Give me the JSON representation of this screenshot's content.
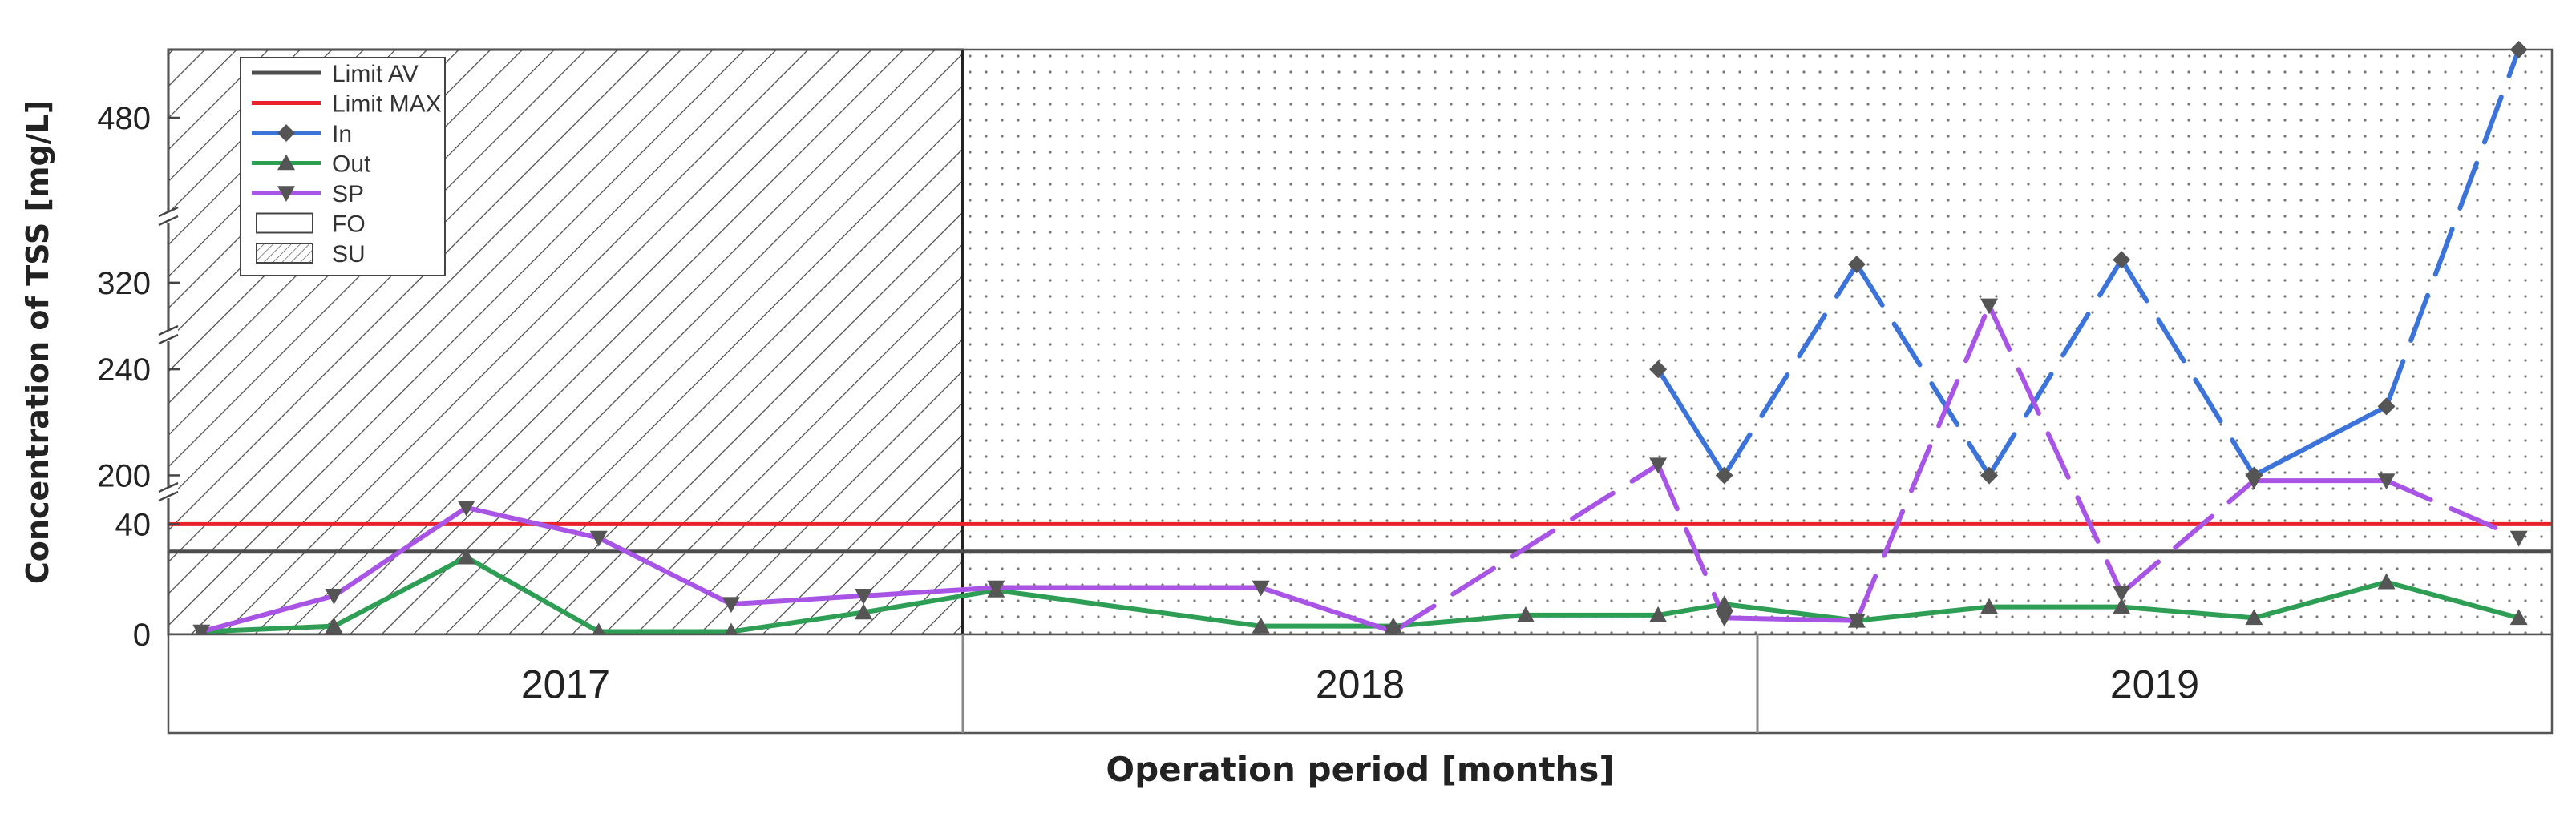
{
  "chart_data": {
    "type": "line",
    "title": "",
    "xlabel": "Operation period [months]",
    "ylabel": "Concentration of TSS [mg/L]",
    "y_axis": {
      "broken": true,
      "segments": [
        {
          "range": [
            0,
            50
          ],
          "ticks": [
            0,
            40
          ]
        },
        {
          "range": [
            195,
            250
          ],
          "ticks": [
            200,
            240
          ]
        },
        {
          "range": [
            300,
            335
          ],
          "ticks": [
            320
          ]
        },
        {
          "range": [
            470,
            490
          ],
          "ticks": [
            480
          ]
        }
      ],
      "tick_labels": [
        "0",
        "40",
        "200",
        "240",
        "320",
        "480"
      ]
    },
    "years": [
      "2017",
      "2018",
      "2019"
    ],
    "months_per_year": 12,
    "periods": [
      {
        "name": "SU",
        "pattern": "hatch",
        "x_range": [
          0,
          12
        ]
      },
      {
        "name": "FO",
        "pattern": "dots",
        "x_range": [
          12,
          36
        ]
      }
    ],
    "limits": [
      {
        "name": "Limit AV",
        "value": 30,
        "color": "#4d4d4d"
      },
      {
        "name": "Limit MAX",
        "value": 40,
        "color": "#e8222a"
      }
    ],
    "series": [
      {
        "name": "In",
        "color": "#3b73d8",
        "marker": "diamond",
        "points": [
          [
            22.5,
            240
          ],
          [
            23.5,
            200
          ],
          [
            25.5,
            328
          ],
          [
            27.5,
            200
          ],
          [
            29.5,
            330
          ],
          [
            31.5,
            200
          ],
          [
            33.5,
            226
          ],
          [
            35.5,
            490
          ]
        ]
      },
      {
        "name": "Out",
        "color": "#2f9e55",
        "marker": "triangle-up",
        "points": [
          [
            0.5,
            1
          ],
          [
            2.5,
            3
          ],
          [
            4.5,
            28
          ],
          [
            6.5,
            1
          ],
          [
            8.5,
            1
          ],
          [
            10.5,
            8
          ],
          [
            12.5,
            16
          ],
          [
            16.5,
            3
          ],
          [
            18.5,
            3
          ],
          [
            20.5,
            7
          ],
          [
            22.5,
            7
          ],
          [
            23.5,
            11
          ],
          [
            25.5,
            5
          ],
          [
            27.5,
            10
          ],
          [
            29.5,
            10
          ],
          [
            31.5,
            6
          ],
          [
            33.5,
            19
          ],
          [
            35.5,
            6
          ]
        ]
      },
      {
        "name": "SP",
        "color": "#a855e6",
        "marker": "triangle-down",
        "points": [
          [
            0.5,
            1
          ],
          [
            2.5,
            14
          ],
          [
            4.5,
            46
          ],
          [
            6.5,
            35
          ],
          [
            8.5,
            11
          ],
          [
            10.5,
            14
          ],
          [
            12.5,
            17
          ],
          [
            16.5,
            17
          ],
          [
            18.5,
            1
          ],
          [
            22.5,
            204
          ],
          [
            23.5,
            6
          ],
          [
            25.5,
            5
          ],
          [
            27.5,
            310
          ],
          [
            29.5,
            15
          ],
          [
            31.5,
            198
          ],
          [
            33.5,
            198
          ],
          [
            35.5,
            35
          ]
        ]
      }
    ],
    "legend": {
      "position": "top-left",
      "entries": [
        "Limit AV",
        "Limit MAX",
        "In",
        "Out",
        "SP",
        "FO",
        "SU"
      ]
    },
    "grid": false
  }
}
